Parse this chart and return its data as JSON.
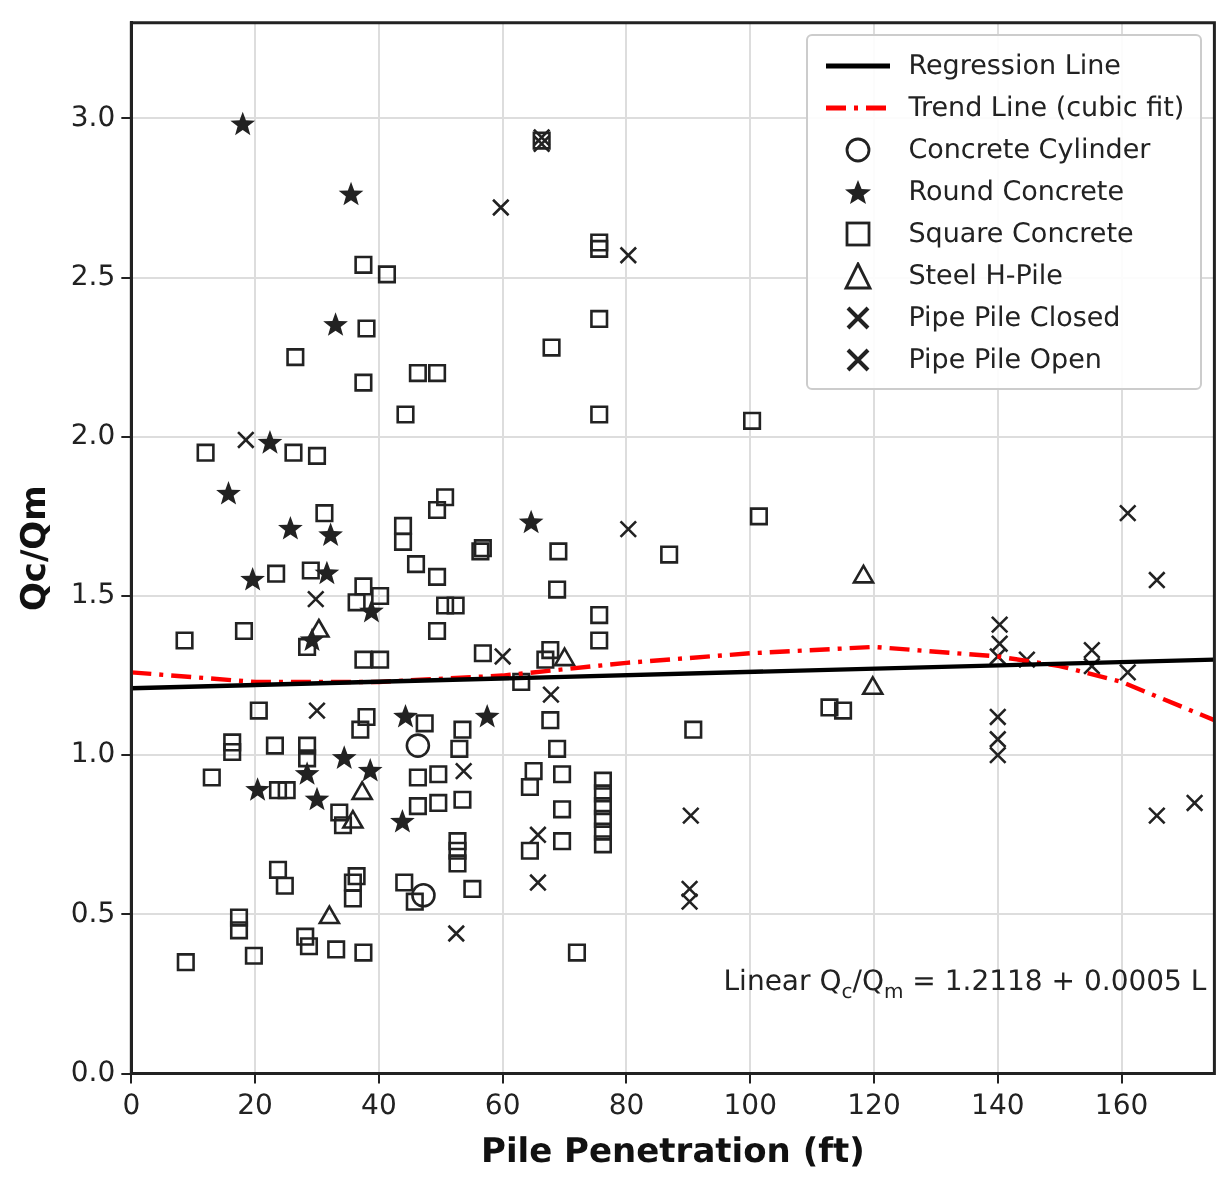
{
  "chart_data": {
    "type": "scatter",
    "xlabel": "Pile Penetration (ft)",
    "ylabel": "Qc/Qm",
    "xlim": [
      0,
      175
    ],
    "ylim": [
      0,
      3.3
    ],
    "xticks": [
      0,
      20,
      40,
      60,
      80,
      100,
      120,
      140,
      160
    ],
    "yticks": [
      {
        "value": 0,
        "label": "0.0"
      },
      {
        "value": 0.5,
        "label": "0.5"
      },
      {
        "value": 1,
        "label": "1.0"
      },
      {
        "value": 1.5,
        "label": "1.5"
      },
      {
        "value": 2,
        "label": "2.0"
      },
      {
        "value": 2.5,
        "label": "2.5"
      },
      {
        "value": 3,
        "label": "3.0"
      }
    ],
    "grid": true,
    "legend": "top right",
    "annotations": [
      "Linear Q$_{c}$/Q$_{m}$ = 1.2118 + 0.0005 L"
    ],
    "series": [
      {
        "name": "Regression Line",
        "type": "line",
        "color": "#000000",
        "line_style": "solid",
        "marker": "none",
        "x": [
          0,
          175
        ],
        "values": [
          1.21,
          1.3
        ]
      },
      {
        "name": "Trend Line (cubic fit)",
        "type": "line",
        "color": "#ff0000",
        "line_style": "dashed",
        "marker": "none",
        "x": [
          0,
          20,
          40,
          60,
          80,
          100,
          120,
          140,
          150,
          160,
          170,
          175
        ],
        "values": [
          1.26,
          1.23,
          1.23,
          1.25,
          1.29,
          1.32,
          1.34,
          1.31,
          1.28,
          1.23,
          1.15,
          1.11
        ]
      },
      {
        "name": "Concrete Cylinder",
        "type": "scatter",
        "color": "#222222",
        "marker": "circle",
        "x": [
          46.3,
          47.2
        ],
        "values": [
          1.03,
          0.56
        ]
      },
      {
        "name": "Round Concrete",
        "type": "scatter",
        "color": "#222222",
        "marker": "star",
        "x": [
          18,
          35.5,
          33,
          22.4,
          15.7,
          25.7,
          32.2,
          19.6,
          31.6,
          38.8,
          29.2,
          44.3,
          57.5,
          34.4,
          28.4,
          38.6,
          20.4,
          30,
          43.8,
          64.6
        ],
        "values": [
          2.98,
          2.76,
          2.35,
          1.98,
          1.82,
          1.71,
          1.69,
          1.55,
          1.57,
          1.45,
          1.36,
          1.12,
          1.12,
          0.99,
          0.94,
          0.95,
          0.89,
          0.86,
          0.79,
          1.73
        ]
      },
      {
        "name": "Square Concrete",
        "type": "scatter",
        "color": "#222222",
        "marker": "square",
        "x": [
          37.5,
          41.3,
          38,
          26.5,
          37.5,
          46.3,
          49.4,
          44.3,
          12,
          26.2,
          30,
          31.2,
          50.7,
          49.4,
          43.9,
          43.9,
          56.8,
          23.4,
          29,
          46,
          49.4,
          37.5,
          40.2,
          36.4,
          50.7,
          52.4,
          49.4,
          8.6,
          18.2,
          28.4,
          37.5,
          40.2,
          56.8,
          20.6,
          38,
          37,
          47.4,
          53.5,
          16.3,
          16.3,
          23.2,
          28.4,
          28.4,
          53,
          13,
          46.3,
          49.6,
          23.7,
          25.1,
          33.6,
          34.2,
          46.3,
          49.6,
          53.5,
          52.7,
          52.7,
          52.7,
          55.1,
          23.7,
          24.8,
          36.4,
          35.8,
          35.8,
          44.1,
          45.8,
          17.4,
          17.4,
          28.1,
          28.7,
          33.1,
          37.5,
          8.8,
          19.8,
          66.3,
          75.6,
          75.6,
          75.6,
          67.9,
          75.6,
          100.3,
          101.4,
          56.4,
          69,
          86.9,
          68.8,
          75.6,
          75.6,
          67.7,
          66.9,
          63,
          67.7,
          90.8,
          112.8,
          115,
          68.8,
          65,
          64.4,
          69.6,
          69.6,
          69.6,
          64.4,
          76.2,
          76.2,
          76.2,
          76.2,
          76.2,
          76.2,
          72
        ],
        "values": [
          2.54,
          2.51,
          2.34,
          2.25,
          2.17,
          2.2,
          2.2,
          2.07,
          1.95,
          1.95,
          1.94,
          1.76,
          1.81,
          1.77,
          1.72,
          1.67,
          1.65,
          1.57,
          1.58,
          1.6,
          1.56,
          1.53,
          1.5,
          1.48,
          1.47,
          1.47,
          1.39,
          1.36,
          1.39,
          1.34,
          1.3,
          1.3,
          1.32,
          1.14,
          1.12,
          1.08,
          1.1,
          1.08,
          1.04,
          1.01,
          1.03,
          1.03,
          0.99,
          1.02,
          0.93,
          0.93,
          0.94,
          0.89,
          0.89,
          0.82,
          0.78,
          0.84,
          0.85,
          0.86,
          0.73,
          0.7,
          0.66,
          0.58,
          0.64,
          0.59,
          0.62,
          0.6,
          0.55,
          0.6,
          0.54,
          0.49,
          0.45,
          0.43,
          0.4,
          0.39,
          0.38,
          0.35,
          0.37,
          2.93,
          2.61,
          2.59,
          2.37,
          2.28,
          2.07,
          2.05,
          1.75,
          1.64,
          1.64,
          1.63,
          1.52,
          1.44,
          1.36,
          1.33,
          1.3,
          1.23,
          1.11,
          1.08,
          1.15,
          1.14,
          1.02,
          0.95,
          0.9,
          0.94,
          0.83,
          0.73,
          0.7,
          0.92,
          0.88,
          0.84,
          0.8,
          0.76,
          0.72,
          0.38
        ]
      },
      {
        "name": "Steel H-Pile",
        "type": "scatter",
        "color": "#222222",
        "marker": "triangle",
        "x": [
          30.3,
          37.3,
          35.8,
          32,
          70,
          118.3,
          119.8
        ],
        "values": [
          1.39,
          0.88,
          0.79,
          0.49,
          1.3,
          1.56,
          1.21
        ]
      },
      {
        "name": "Pipe Pile Closed",
        "type": "scatter",
        "color": "#222222",
        "marker": "cross",
        "x": [
          18.5,
          29.8,
          66.3,
          59.7,
          80.3,
          80.3,
          60,
          65.7,
          65.7,
          90.4,
          90.2,
          90.2,
          140.3,
          140.3,
          140,
          144.7,
          155.2,
          155.2,
          161,
          165.7,
          161,
          140,
          165.7
        ],
        "values": [
          1.99,
          1.49,
          2.92,
          2.72,
          2.57,
          1.71,
          1.31,
          0.75,
          0.6,
          0.81,
          0.58,
          0.54,
          1.41,
          1.35,
          1.31,
          1.3,
          1.33,
          1.28,
          1.26,
          1.55,
          1.76,
          1.12,
          0.81
        ]
      },
      {
        "name": "Pipe Pile Open",
        "type": "scatter",
        "color": "#222222",
        "marker": "cross",
        "x": [
          30,
          53.7,
          52.5,
          67.8,
          66.3,
          140,
          140,
          171.8
        ],
        "values": [
          1.14,
          0.95,
          0.44,
          1.19,
          2.94,
          1.05,
          1,
          0.85
        ]
      }
    ]
  }
}
